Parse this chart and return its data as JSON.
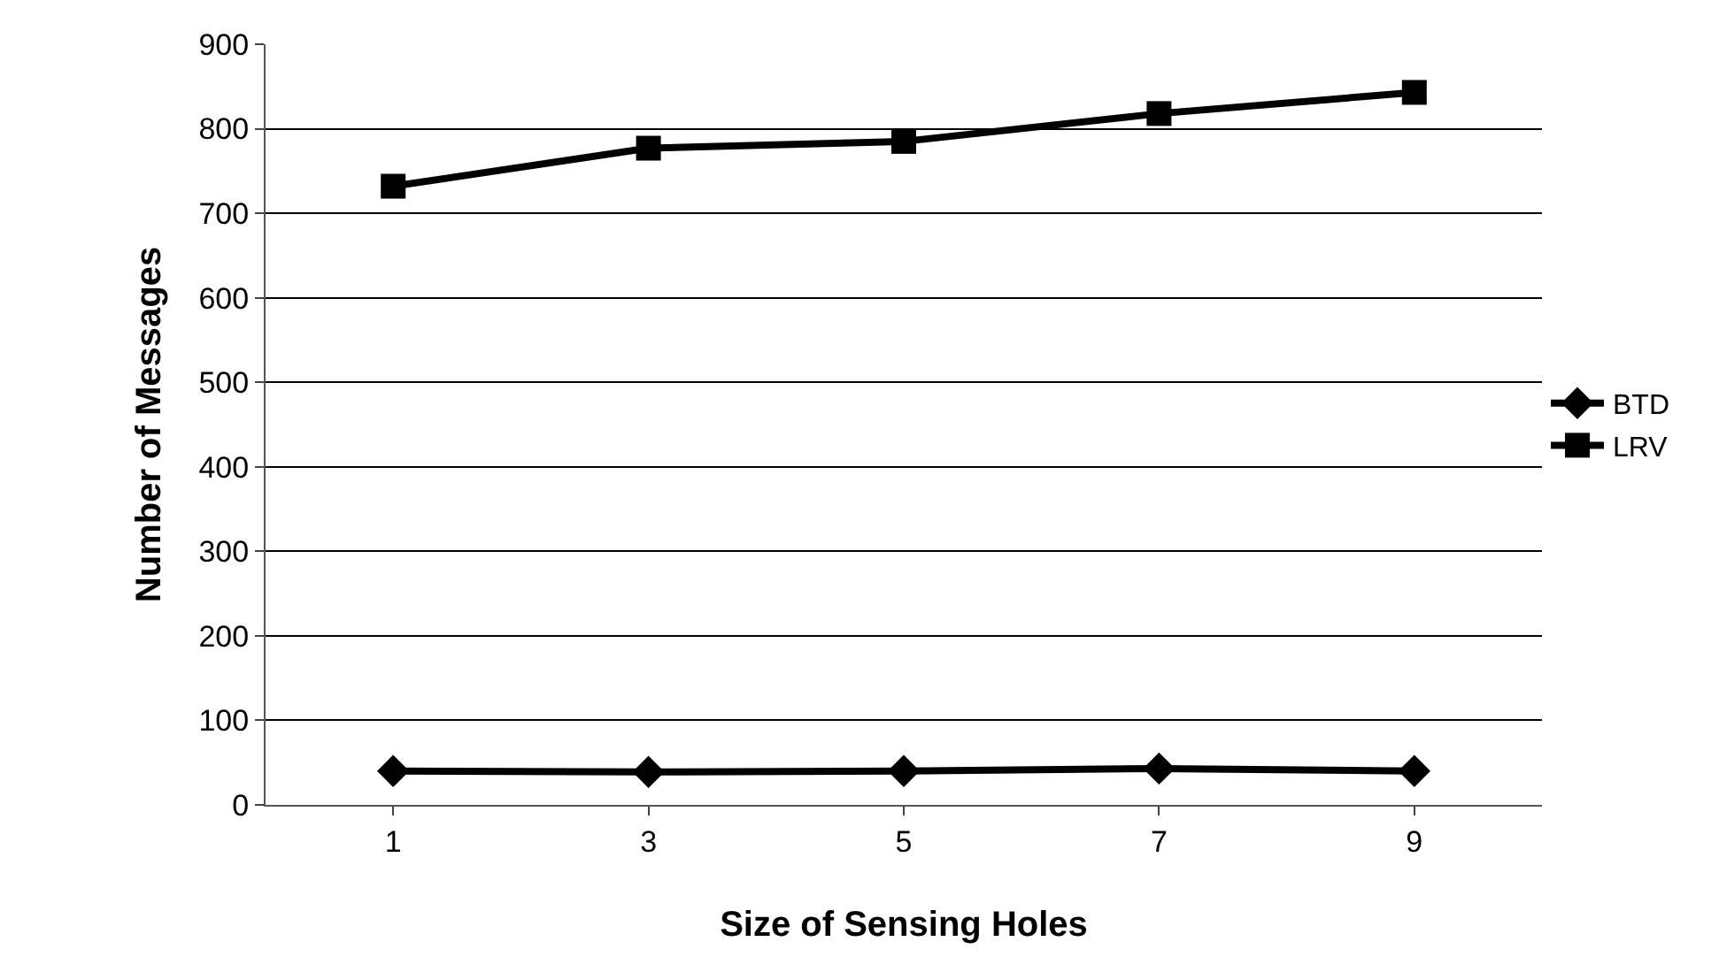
{
  "chart_data": {
    "type": "line",
    "xlabel": "Size of Sensing Holes",
    "ylabel": "Number of Messages",
    "categories": [
      "1",
      "3",
      "5",
      "7",
      "9"
    ],
    "series": [
      {
        "name": "BTD",
        "color": "#000000",
        "marker": "diamond",
        "values": [
          40,
          39,
          40,
          43,
          40
        ]
      },
      {
        "name": "LRV",
        "color": "#000000",
        "marker": "square",
        "values": [
          732,
          777,
          785,
          818,
          843
        ]
      }
    ],
    "ylim": [
      0,
      900
    ],
    "yticks": [
      0,
      100,
      200,
      300,
      400,
      500,
      600,
      700,
      800,
      900
    ],
    "grid": "y",
    "legend": "right",
    "line_style": "solid"
  }
}
